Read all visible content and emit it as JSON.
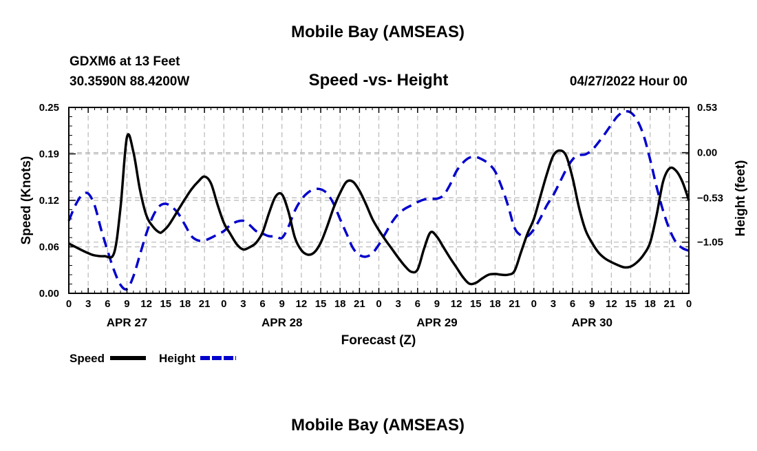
{
  "header": {
    "title": "Mobile Bay (AMSEAS)",
    "station": "GDXM6 at 13 Feet",
    "coords": "30.3590N  88.4200W",
    "datetime": "04/27/2022 Hour 00"
  },
  "footer": {
    "title": "Mobile Bay (AMSEAS)"
  },
  "chart_data": {
    "type": "line",
    "title": "Speed -vs- Height",
    "xlabel": "Forecast (Z)",
    "ylabel": "Speed (Knots)",
    "y2label": "Height (feet)",
    "x_unit": "hours from 04/27/2022 00Z",
    "xlim": [
      0,
      96
    ],
    "x_tick_labels": [
      "0",
      "3",
      "6",
      "9",
      "12",
      "15",
      "18",
      "21",
      "0",
      "3",
      "6",
      "9",
      "12",
      "15",
      "18",
      "21",
      "0",
      "3",
      "6",
      "9",
      "12",
      "15",
      "18",
      "21",
      "0",
      "3",
      "6",
      "9",
      "12",
      "15",
      "18",
      "21",
      "0"
    ],
    "day_labels": [
      {
        "label": "APR 27",
        "x": 9
      },
      {
        "label": "APR 28",
        "x": 33
      },
      {
        "label": "APR 29",
        "x": 57
      },
      {
        "label": "APR 30",
        "x": 81
      }
    ],
    "ylim": [
      0,
      0.25
    ],
    "y_ticks": [
      "0.00",
      "0.06",
      "0.12",
      "0.19",
      "0.25"
    ],
    "y2lim": [
      -1.65,
      0.53
    ],
    "y2_ticks": [
      {
        "label": "0.53",
        "value": 0.53
      },
      {
        "label": "0.00",
        "value": 0.0
      },
      {
        "label": "−0.53",
        "value": -0.53
      },
      {
        "label": "−1.05",
        "value": -1.05
      }
    ],
    "grid": true,
    "legend": [
      {
        "name": "Speed",
        "color": "#000000",
        "style": "solid"
      },
      {
        "name": "Height",
        "color": "#0000cc",
        "style": "dashed"
      }
    ],
    "series": [
      {
        "name": "Speed",
        "axis": "left",
        "color": "#000000",
        "style": "solid",
        "x": [
          0,
          2,
          3,
          4,
          5.5,
          7,
          8,
          9,
          10,
          11,
          12,
          13,
          14,
          14.5,
          15.5,
          17,
          18,
          19,
          20,
          21,
          22,
          23,
          24,
          25,
          26,
          27,
          28,
          29,
          30,
          31,
          32,
          33,
          34,
          35,
          36,
          37,
          38,
          39,
          40,
          41,
          42,
          43,
          44,
          45,
          46,
          47,
          48,
          49,
          50,
          51,
          52,
          53,
          54,
          55,
          56,
          57,
          58,
          59,
          60,
          61,
          62,
          63,
          64,
          65,
          66,
          67,
          68,
          69,
          70,
          71,
          72,
          73,
          74,
          75,
          76,
          77,
          78,
          79,
          80,
          81,
          82,
          83,
          84,
          85,
          86,
          87,
          88,
          89,
          90,
          91,
          92,
          93,
          94,
          95,
          96
        ],
        "values": [
          0.067,
          0.058,
          0.054,
          0.051,
          0.05,
          0.054,
          0.115,
          0.21,
          0.19,
          0.14,
          0.105,
          0.09,
          0.082,
          0.083,
          0.092,
          0.113,
          0.127,
          0.14,
          0.15,
          0.157,
          0.148,
          0.12,
          0.095,
          0.08,
          0.066,
          0.059,
          0.062,
          0.068,
          0.082,
          0.108,
          0.13,
          0.133,
          0.11,
          0.075,
          0.058,
          0.052,
          0.055,
          0.068,
          0.09,
          0.115,
          0.135,
          0.15,
          0.15,
          0.138,
          0.12,
          0.1,
          0.085,
          0.072,
          0.06,
          0.048,
          0.037,
          0.029,
          0.032,
          0.06,
          0.082,
          0.076,
          0.062,
          0.048,
          0.035,
          0.022,
          0.013,
          0.014,
          0.02,
          0.025,
          0.026,
          0.025,
          0.025,
          0.03,
          0.055,
          0.08,
          0.1,
          0.13,
          0.16,
          0.185,
          0.192,
          0.185,
          0.155,
          0.115,
          0.085,
          0.068,
          0.055,
          0.047,
          0.042,
          0.038,
          0.035,
          0.036,
          0.042,
          0.052,
          0.068,
          0.105,
          0.15,
          0.168,
          0.165,
          0.15,
          0.125
        ]
      },
      {
        "name": "Height",
        "axis": "right",
        "color": "#0000cc",
        "style": "dashed",
        "x": [
          0,
          1,
          2,
          3,
          4,
          5,
          6,
          7,
          8,
          9,
          10,
          11,
          12,
          13,
          14,
          15,
          16,
          17,
          18,
          19,
          20,
          21,
          22,
          23,
          24,
          25,
          26,
          27,
          28,
          29,
          30,
          31,
          32,
          33,
          34,
          35,
          36,
          37,
          38,
          39,
          40,
          41,
          42,
          43,
          44,
          45,
          46,
          47,
          48,
          49,
          50,
          51,
          52,
          53,
          54,
          55,
          56,
          57,
          58,
          59,
          60,
          61,
          62,
          63,
          64,
          65,
          66,
          67,
          68,
          69,
          70,
          71,
          72,
          73,
          74,
          75,
          76,
          77,
          78,
          79,
          80,
          81,
          82,
          83,
          84,
          85,
          86,
          87,
          88,
          89,
          90,
          91,
          92,
          93,
          94,
          95,
          96
        ],
        "values": [
          -0.8,
          -0.62,
          -0.5,
          -0.48,
          -0.62,
          -0.9,
          -1.15,
          -1.38,
          -1.55,
          -1.6,
          -1.45,
          -1.2,
          -0.95,
          -0.75,
          -0.63,
          -0.6,
          -0.64,
          -0.72,
          -0.85,
          -0.98,
          -1.03,
          -1.03,
          -1.0,
          -0.96,
          -0.92,
          -0.85,
          -0.81,
          -0.8,
          -0.85,
          -0.92,
          -0.95,
          -0.98,
          -0.98,
          -1.0,
          -0.87,
          -0.68,
          -0.55,
          -0.47,
          -0.43,
          -0.43,
          -0.48,
          -0.6,
          -0.78,
          -0.95,
          -1.12,
          -1.2,
          -1.22,
          -1.18,
          -1.08,
          -0.95,
          -0.82,
          -0.72,
          -0.66,
          -0.62,
          -0.58,
          -0.55,
          -0.54,
          -0.54,
          -0.5,
          -0.38,
          -0.22,
          -0.12,
          -0.06,
          -0.05,
          -0.08,
          -0.13,
          -0.22,
          -0.4,
          -0.62,
          -0.88,
          -0.97,
          -0.98,
          -0.9,
          -0.77,
          -0.62,
          -0.5,
          -0.35,
          -0.2,
          -0.08,
          -0.03,
          -0.02,
          0.03,
          0.12,
          0.22,
          0.33,
          0.43,
          0.48,
          0.47,
          0.38,
          0.2,
          -0.08,
          -0.4,
          -0.68,
          -0.9,
          -1.05,
          -1.12,
          -1.15
        ]
      }
    ]
  }
}
